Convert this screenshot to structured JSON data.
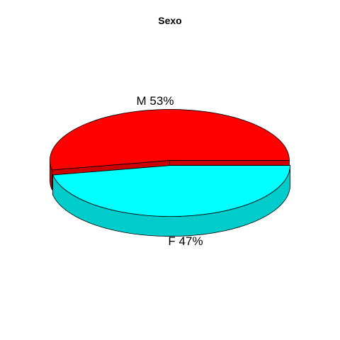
{
  "chart_data": {
    "type": "pie",
    "style": "3d-exploded",
    "title": "Sexo",
    "categories": [
      "M",
      "F"
    ],
    "values": [
      53,
      47
    ],
    "labels": [
      "M 53%",
      "F 47%"
    ],
    "colors": {
      "M": {
        "top": "#ff0000",
        "side": "#cc0000"
      },
      "F": {
        "top": "#00ffff",
        "side": "#00cccc"
      }
    },
    "outline_color": "#000000",
    "legend": "none"
  }
}
